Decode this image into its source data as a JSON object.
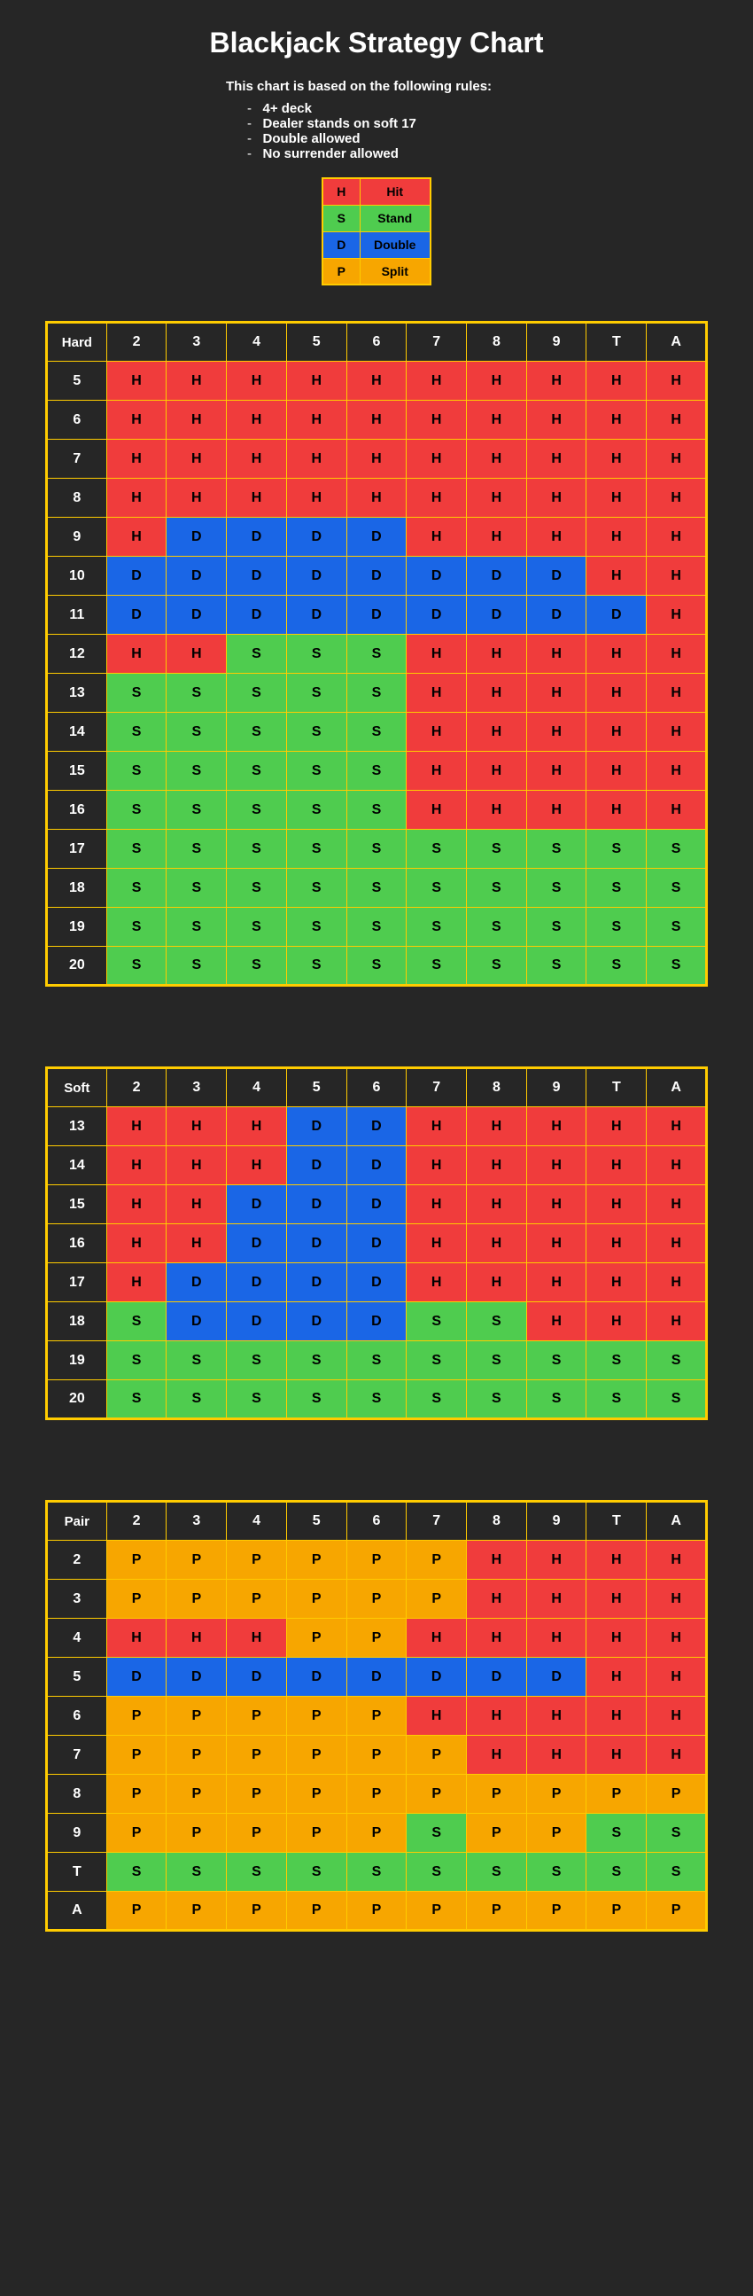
{
  "title": "Blackjack Strategy Chart",
  "rules_intro": "This chart is based on the following rules:",
  "rules": [
    "4+ deck",
    "Dealer stands on soft 17",
    "Double allowed",
    "No surrender allowed"
  ],
  "legend": [
    {
      "code": "H",
      "label": "Hit",
      "color": "#f03c3c"
    },
    {
      "code": "S",
      "label": "Stand",
      "color": "#4fcc4f"
    },
    {
      "code": "D",
      "label": "Double",
      "color": "#1a66e6"
    },
    {
      "code": "P",
      "label": "Split",
      "color": "#f7a600"
    }
  ],
  "dealer_cols": [
    "2",
    "3",
    "4",
    "5",
    "6",
    "7",
    "8",
    "9",
    "T",
    "A"
  ],
  "header_bg": "#262626",
  "border_color": "#ffcc00",
  "tables": [
    {
      "corner": "Hard",
      "row_labels": [
        "5",
        "6",
        "7",
        "8",
        "9",
        "10",
        "11",
        "12",
        "13",
        "14",
        "15",
        "16",
        "17",
        "18",
        "19",
        "20"
      ],
      "cells": [
        [
          "H",
          "H",
          "H",
          "H",
          "H",
          "H",
          "H",
          "H",
          "H",
          "H"
        ],
        [
          "H",
          "H",
          "H",
          "H",
          "H",
          "H",
          "H",
          "H",
          "H",
          "H"
        ],
        [
          "H",
          "H",
          "H",
          "H",
          "H",
          "H",
          "H",
          "H",
          "H",
          "H"
        ],
        [
          "H",
          "H",
          "H",
          "H",
          "H",
          "H",
          "H",
          "H",
          "H",
          "H"
        ],
        [
          "H",
          "D",
          "D",
          "D",
          "D",
          "H",
          "H",
          "H",
          "H",
          "H"
        ],
        [
          "D",
          "D",
          "D",
          "D",
          "D",
          "D",
          "D",
          "D",
          "H",
          "H"
        ],
        [
          "D",
          "D",
          "D",
          "D",
          "D",
          "D",
          "D",
          "D",
          "D",
          "H"
        ],
        [
          "H",
          "H",
          "S",
          "S",
          "S",
          "H",
          "H",
          "H",
          "H",
          "H"
        ],
        [
          "S",
          "S",
          "S",
          "S",
          "S",
          "H",
          "H",
          "H",
          "H",
          "H"
        ],
        [
          "S",
          "S",
          "S",
          "S",
          "S",
          "H",
          "H",
          "H",
          "H",
          "H"
        ],
        [
          "S",
          "S",
          "S",
          "S",
          "S",
          "H",
          "H",
          "H",
          "H",
          "H"
        ],
        [
          "S",
          "S",
          "S",
          "S",
          "S",
          "H",
          "H",
          "H",
          "H",
          "H"
        ],
        [
          "S",
          "S",
          "S",
          "S",
          "S",
          "S",
          "S",
          "S",
          "S",
          "S"
        ],
        [
          "S",
          "S",
          "S",
          "S",
          "S",
          "S",
          "S",
          "S",
          "S",
          "S"
        ],
        [
          "S",
          "S",
          "S",
          "S",
          "S",
          "S",
          "S",
          "S",
          "S",
          "S"
        ],
        [
          "S",
          "S",
          "S",
          "S",
          "S",
          "S",
          "S",
          "S",
          "S",
          "S"
        ]
      ]
    },
    {
      "corner": "Soft",
      "row_labels": [
        "13",
        "14",
        "15",
        "16",
        "17",
        "18",
        "19",
        "20"
      ],
      "cells": [
        [
          "H",
          "H",
          "H",
          "D",
          "D",
          "H",
          "H",
          "H",
          "H",
          "H"
        ],
        [
          "H",
          "H",
          "H",
          "D",
          "D",
          "H",
          "H",
          "H",
          "H",
          "H"
        ],
        [
          "H",
          "H",
          "D",
          "D",
          "D",
          "H",
          "H",
          "H",
          "H",
          "H"
        ],
        [
          "H",
          "H",
          "D",
          "D",
          "D",
          "H",
          "H",
          "H",
          "H",
          "H"
        ],
        [
          "H",
          "D",
          "D",
          "D",
          "D",
          "H",
          "H",
          "H",
          "H",
          "H"
        ],
        [
          "S",
          "D",
          "D",
          "D",
          "D",
          "S",
          "S",
          "H",
          "H",
          "H"
        ],
        [
          "S",
          "S",
          "S",
          "S",
          "S",
          "S",
          "S",
          "S",
          "S",
          "S"
        ],
        [
          "S",
          "S",
          "S",
          "S",
          "S",
          "S",
          "S",
          "S",
          "S",
          "S"
        ]
      ]
    },
    {
      "corner": "Pair",
      "row_labels": [
        "2",
        "3",
        "4",
        "5",
        "6",
        "7",
        "8",
        "9",
        "T",
        "A"
      ],
      "cells": [
        [
          "P",
          "P",
          "P",
          "P",
          "P",
          "P",
          "H",
          "H",
          "H",
          "H"
        ],
        [
          "P",
          "P",
          "P",
          "P",
          "P",
          "P",
          "H",
          "H",
          "H",
          "H"
        ],
        [
          "H",
          "H",
          "H",
          "P",
          "P",
          "H",
          "H",
          "H",
          "H",
          "H"
        ],
        [
          "D",
          "D",
          "D",
          "D",
          "D",
          "D",
          "D",
          "D",
          "H",
          "H"
        ],
        [
          "P",
          "P",
          "P",
          "P",
          "P",
          "H",
          "H",
          "H",
          "H",
          "H"
        ],
        [
          "P",
          "P",
          "P",
          "P",
          "P",
          "P",
          "H",
          "H",
          "H",
          "H"
        ],
        [
          "P",
          "P",
          "P",
          "P",
          "P",
          "P",
          "P",
          "P",
          "P",
          "P"
        ],
        [
          "P",
          "P",
          "P",
          "P",
          "P",
          "S",
          "P",
          "P",
          "S",
          "S"
        ],
        [
          "S",
          "S",
          "S",
          "S",
          "S",
          "S",
          "S",
          "S",
          "S",
          "S"
        ],
        [
          "P",
          "P",
          "P",
          "P",
          "P",
          "P",
          "P",
          "P",
          "P",
          "P"
        ]
      ]
    }
  ]
}
